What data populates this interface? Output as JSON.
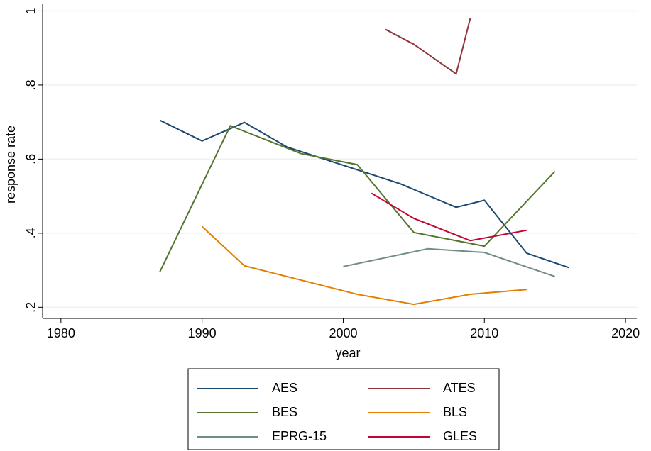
{
  "chart_data": {
    "type": "line",
    "x_label": "year",
    "y_label": "response rate",
    "xlim": [
      1978.7,
      2020.8
    ],
    "xticks": [
      1980,
      1990,
      2000,
      2010,
      2020
    ],
    "ylim": [
      0.17,
      1.02
    ],
    "yticks": [
      {
        "value": 0.2,
        "label": ".2"
      },
      {
        "value": 0.4,
        "label": ".4"
      },
      {
        "value": 0.6,
        "label": ".6"
      },
      {
        "value": 0.8,
        "label": ".8"
      },
      1
    ],
    "grid": true,
    "legend": "bottom",
    "series": [
      {
        "name": "AES",
        "color": "#1a476f",
        "x": [
          1987,
          1990,
          1993,
          1996,
          2004,
          2008,
          2010,
          2013,
          2016
        ],
        "values": [
          0.705,
          0.649,
          0.699,
          0.633,
          0.534,
          0.47,
          0.489,
          0.346,
          0.307
        ]
      },
      {
        "name": "ATES",
        "color": "#90353b",
        "x": [
          2003,
          2005,
          2008,
          2009
        ],
        "values": [
          0.95,
          0.91,
          0.83,
          0.98
        ]
      },
      {
        "name": "BES",
        "color": "#55752f",
        "x": [
          1987,
          1992,
          1997,
          2001,
          2005,
          2010,
          2015
        ],
        "values": [
          0.295,
          0.69,
          0.615,
          0.585,
          0.402,
          0.365,
          0.567
        ]
      },
      {
        "name": "BLS",
        "color": "#e37e00",
        "x": [
          1990,
          1993,
          2001,
          2005,
          2009,
          2013
        ],
        "values": [
          0.418,
          0.312,
          0.235,
          0.208,
          0.235,
          0.248
        ]
      },
      {
        "name": "EPRG-15",
        "color": "#6e8e84",
        "x": [
          2000,
          2006,
          2010,
          2015
        ],
        "values": [
          0.31,
          0.358,
          0.348,
          0.283
        ]
      },
      {
        "name": "GLES",
        "color": "#c10534",
        "x": [
          2002,
          2005,
          2009,
          2013
        ],
        "values": [
          0.508,
          0.44,
          0.38,
          0.408
        ]
      }
    ]
  }
}
